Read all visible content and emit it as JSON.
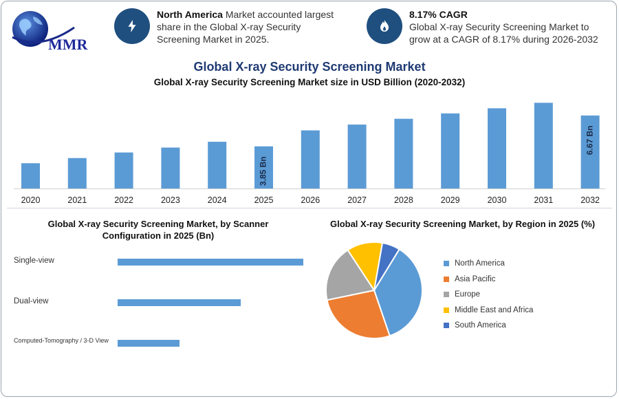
{
  "logo": {
    "text": "MMR"
  },
  "info_left": {
    "bold": "North America",
    "text": " Market accounted largest share in the Global X-ray Security Screening Market in 2025.",
    "icon": "lightning-icon"
  },
  "info_right": {
    "bold": "8.17% CAGR",
    "text": "Global X-ray Security Screening Market to grow at a CAGR of 8.17% during 2026-2032",
    "icon": "flame-icon"
  },
  "title": "Global X-ray Security Screening Market",
  "colors": {
    "bar": "#5b9bd5",
    "title": "#1f3a73",
    "icon_bg": "#1f4f7f"
  },
  "chart_data": [
    {
      "type": "bar",
      "title": "Global X-ray Security Screening Market size in USD Billion (2020-2032)",
      "categories": [
        "2020",
        "2021",
        "2022",
        "2023",
        "2024",
        "2025",
        "2026",
        "2027",
        "2028",
        "2029",
        "2030",
        "2031",
        "2032"
      ],
      "values": [
        2.31,
        2.78,
        3.29,
        3.74,
        4.27,
        3.85,
        5.31,
        5.84,
        6.37,
        6.86,
        7.33,
        7.83,
        6.67
      ],
      "bar_labels": {
        "2025": "3.85 Bn",
        "2032": "6.67 Bn"
      },
      "ylim": [
        0,
        8.8
      ]
    },
    {
      "type": "bar",
      "orientation": "horizontal",
      "title": "Global X-ray Security Screening Market, by Scanner Configuration in 2025 (Bn)",
      "categories": [
        "Single-view",
        "Dual-view",
        "Computed-Tomography / 3-D View"
      ],
      "values": [
        1.8,
        1.19,
        0.6
      ]
    },
    {
      "type": "pie",
      "title": "Global X-ray Security Screening Market, by Region in 2025 (%)",
      "labels": [
        "North America",
        "Asia Pacific",
        "Europe",
        "Middle East and Africa",
        "South America"
      ],
      "values": [
        36,
        27,
        19,
        12,
        6
      ],
      "colors": [
        "#5b9bd5",
        "#ed7d31",
        "#a5a5a5",
        "#ffc000",
        "#4472c4"
      ]
    }
  ]
}
